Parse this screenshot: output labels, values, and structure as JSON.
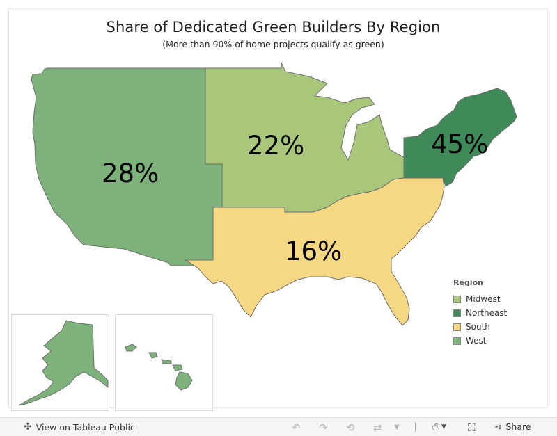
{
  "map": {
    "title": "Share of Dedicated Green Builders By Region",
    "subtitle": "(More than 90% of home projects qualify as green)",
    "regions": [
      {
        "name": "West",
        "value": "28%",
        "color": "#7db37b"
      },
      {
        "name": "Midwest",
        "value": "22%",
        "color": "#a9c77b"
      },
      {
        "name": "Northeast",
        "value": "45%",
        "color": "#3f8a58"
      },
      {
        "name": "South",
        "value": "16%",
        "color": "#f6d784"
      }
    ]
  },
  "legend": {
    "title": "Region",
    "items": [
      {
        "label": "Midwest",
        "color": "#a9c77b"
      },
      {
        "label": "Northeast",
        "color": "#3f8a58"
      },
      {
        "label": "South",
        "color": "#f6d784"
      },
      {
        "label": "West",
        "color": "#7db37b"
      }
    ]
  },
  "toolbar": {
    "view_label": "View on Tableau Public",
    "share_label": "Share"
  }
}
